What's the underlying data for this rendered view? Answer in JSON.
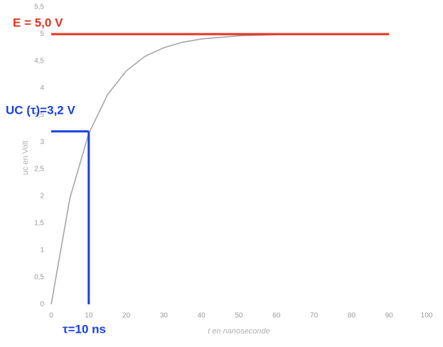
{
  "chart_data": {
    "type": "line",
    "x": [
      0,
      5,
      10,
      15,
      20,
      25,
      30,
      35,
      40,
      45,
      50,
      55,
      60,
      65,
      70,
      75,
      80,
      85,
      90
    ],
    "series": [
      {
        "color": "#a6a6a6",
        "values": [
          0,
          1.97,
          3.16,
          3.88,
          4.32,
          4.59,
          4.75,
          4.85,
          4.91,
          4.94,
          4.97,
          4.98,
          4.99,
          4.99,
          5.0,
          5.0,
          5.0,
          5.0,
          5.0
        ]
      }
    ],
    "xlim": [
      0,
      100
    ],
    "xticks": [
      0,
      10,
      20,
      30,
      40,
      50,
      60,
      70,
      80,
      90,
      100
    ],
    "ylim": [
      0,
      5.5
    ],
    "yticks": [
      0,
      {
        "value": 0.5,
        "label": "0,5"
      },
      1,
      {
        "value": 1.5,
        "label": "1,5"
      },
      2,
      {
        "value": 2.5,
        "label": "2,5"
      },
      3,
      {
        "value": 3.5,
        "label": "3,5"
      },
      4,
      {
        "value": 4.5,
        "label": "4,5"
      },
      5,
      {
        "value": 5.5,
        "label": "5,5"
      }
    ],
    "xlabel": "t en nanoseconde",
    "ylabel": "uc en Volt",
    "grid": false,
    "annotations": [
      {
        "text": "E = 5,0 V",
        "color": "#e8321e",
        "x": [
          0,
          90
        ],
        "y": [
          5,
          5
        ]
      },
      {
        "text": "UC (τ)=3,2 V",
        "color": "#1a3fe0",
        "x": [
          0,
          10
        ],
        "y": [
          3.2,
          3.2
        ]
      },
      {
        "text": "τ=10 ns",
        "color": "#1a3fe0",
        "x": [
          10,
          10
        ],
        "y": [
          3.2,
          0
        ]
      }
    ]
  }
}
